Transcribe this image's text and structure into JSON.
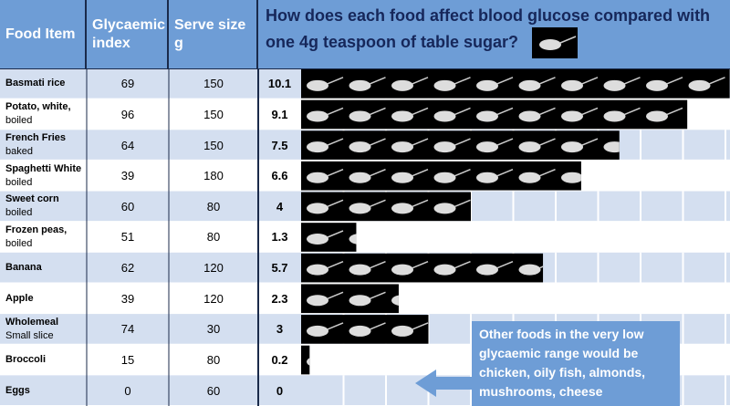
{
  "header": {
    "columns": [
      "Food Item",
      "Glycaemic index",
      "Serve size g"
    ],
    "title": "How does each food affect blood glucose compared with one 4g teaspoon of table sugar?"
  },
  "rows": [
    {
      "name": "Basmati rice",
      "detail": null,
      "gi": 69,
      "serve": 150,
      "teaspoons": 10.1
    },
    {
      "name": "Potato, white,",
      "detail": "boiled",
      "gi": 96,
      "serve": 150,
      "teaspoons": 9.1
    },
    {
      "name": "French Fries",
      "detail": "baked",
      "gi": 64,
      "serve": 150,
      "teaspoons": 7.5
    },
    {
      "name": "Spaghetti White",
      "detail": "boiled",
      "gi": 39,
      "serve": 180,
      "teaspoons": 6.6
    },
    {
      "name": "Sweet corn",
      "detail": "boiled",
      "gi": 60,
      "serve": 80,
      "teaspoons": 4.0
    },
    {
      "name": "Frozen peas,",
      "detail": "boiled",
      "gi": 51,
      "serve": 80,
      "teaspoons": 1.3
    },
    {
      "name": "Banana",
      "detail": null,
      "gi": 62,
      "serve": 120,
      "teaspoons": 5.7
    },
    {
      "name": "Apple",
      "detail": null,
      "gi": 39,
      "serve": 120,
      "teaspoons": 2.3
    },
    {
      "name": "Wholemeal",
      "detail": "Small slice",
      "gi": 74,
      "serve": 30,
      "teaspoons": 3.0
    },
    {
      "name": "Broccoli",
      "detail": null,
      "gi": 15,
      "serve": 80,
      "teaspoons": 0.2
    },
    {
      "name": "Eggs",
      "detail": null,
      "gi": 0,
      "serve": 60,
      "teaspoons": 0
    }
  ],
  "callout": "Other foods in the very low glycaemic range would be chicken, oily fish, almonds, mushrooms, cheese"
}
